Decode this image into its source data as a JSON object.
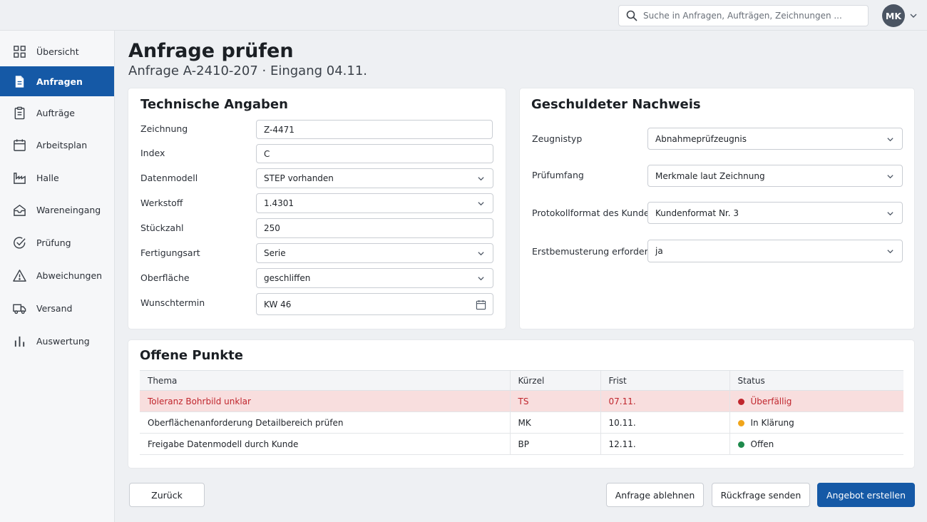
{
  "search": {
    "placeholder": "Suche in Anfragen, Aufträgen, Zeichnungen ..."
  },
  "user": {
    "initials": "MK"
  },
  "sidebar": {
    "items": [
      {
        "label": "Übersicht",
        "icon": "grid-icon"
      },
      {
        "label": "Anfragen",
        "icon": "document-icon",
        "active": true
      },
      {
        "label": "Aufträge",
        "icon": "clipboard-icon"
      },
      {
        "label": "Arbeitsplan",
        "icon": "calendar-icon"
      },
      {
        "label": "Halle",
        "icon": "factory-icon"
      },
      {
        "label": "Wareneingang",
        "icon": "inbox-icon"
      },
      {
        "label": "Prüfung",
        "icon": "check-circle-icon"
      },
      {
        "label": "Abweichungen",
        "icon": "warning-icon"
      },
      {
        "label": "Versand",
        "icon": "truck-icon"
      },
      {
        "label": "Auswertung",
        "icon": "bar-chart-icon"
      }
    ]
  },
  "page": {
    "title": "Anfrage prüfen",
    "subtitle": "Anfrage A-2410-207 · Eingang 04.11."
  },
  "technical": {
    "title": "Technische Angaben",
    "fields": [
      {
        "label": "Zeichnung",
        "value": "Z-4471",
        "kind": "text"
      },
      {
        "label": "Index",
        "value": "C",
        "kind": "text"
      },
      {
        "label": "Datenmodell",
        "value": "STEP vorhanden",
        "kind": "select"
      },
      {
        "label": "Werkstoff",
        "value": "1.4301",
        "kind": "select"
      },
      {
        "label": "Stückzahl",
        "value": "250",
        "kind": "text"
      },
      {
        "label": "Fertigungsart",
        "value": "Serie",
        "kind": "select"
      },
      {
        "label": "Oberfläche",
        "value": "geschliffen",
        "kind": "select"
      },
      {
        "label": "Wunschtermin",
        "value": "KW 46",
        "kind": "date"
      }
    ]
  },
  "proof": {
    "title": "Geschuldeter Nachweis",
    "fields": [
      {
        "label": "Zeugnistyp",
        "value": "Abnahmeprüfzeugnis"
      },
      {
        "label": "Prüfumfang",
        "value": "Merkmale laut Zeichnung"
      },
      {
        "label": "Protokollformat des Kunden",
        "value": "Kundenformat Nr. 3"
      },
      {
        "label": "Erstbemusterung erforderlich",
        "value": "ja"
      }
    ]
  },
  "open_points": {
    "title": "Offene Punkte",
    "columns": [
      "Thema",
      "Kürzel",
      "Frist",
      "Status"
    ],
    "rows": [
      {
        "topic": "Toleranz Bohrbild unklar",
        "abbr": "TS",
        "due": "07.11.",
        "status": "Überfällig",
        "status_color": "#c0262d",
        "highlight": true
      },
      {
        "topic": "Oberflächenanforderung Detailbereich prüfen",
        "abbr": "MK",
        "due": "10.11.",
        "status": "In Klärung",
        "status_color": "#f0a51a",
        "highlight": false
      },
      {
        "topic": "Freigabe Datenmodell durch Kunde",
        "abbr": "BP",
        "due": "12.11.",
        "status": "Offen",
        "status_color": "#1e8a4c",
        "highlight": false
      }
    ]
  },
  "actions": {
    "back": "Zurück",
    "reject": "Anfrage ablehnen",
    "query": "Rückfrage senden",
    "offer": "Angebot erstellen"
  },
  "colors": {
    "primary": "#1559a6",
    "overdue_bg": "#f8dede"
  }
}
